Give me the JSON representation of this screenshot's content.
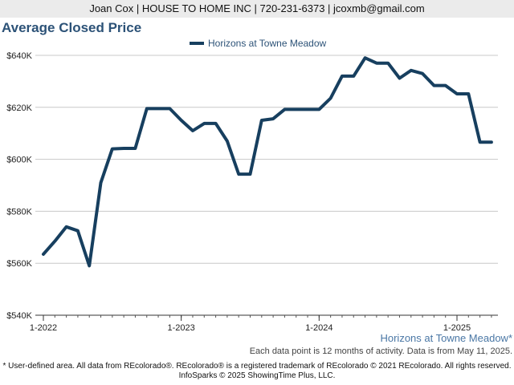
{
  "header": {
    "contact_line": "Joan Cox | HOUSE TO HOME INC | 720-231-6373 | jcoxmb@gmail.com"
  },
  "chart_data": {
    "type": "line",
    "title": "Average Closed Price",
    "legend": {
      "position": "top-center"
    },
    "grid": true,
    "ylim": [
      540000,
      640000
    ],
    "y_ticks": [
      540000,
      560000,
      580000,
      600000,
      620000,
      640000
    ],
    "y_tick_labels": [
      "$540K",
      "$560K",
      "$580K",
      "$600K",
      "$620K",
      "$640K"
    ],
    "x_ticks": [
      "2022-01",
      "2023-01",
      "2024-01",
      "2025-01"
    ],
    "x_tick_labels": [
      "1-2022",
      "1-2023",
      "1-2024",
      "1-2025"
    ],
    "series": [
      {
        "name": "Horizons at Towne Meadow",
        "color": "#173f5f",
        "x": [
          "2022-01",
          "2022-02",
          "2022-03",
          "2022-04",
          "2022-05",
          "2022-06",
          "2022-07",
          "2022-08",
          "2022-09",
          "2022-10",
          "2022-11",
          "2022-12",
          "2023-01",
          "2023-02",
          "2023-03",
          "2023-04",
          "2023-05",
          "2023-06",
          "2023-07",
          "2023-08",
          "2023-09",
          "2023-10",
          "2023-11",
          "2023-12",
          "2024-01",
          "2024-02",
          "2024-03",
          "2024-04",
          "2024-05",
          "2024-06",
          "2024-07",
          "2024-08",
          "2024-09",
          "2024-10",
          "2024-11",
          "2024-12",
          "2025-01",
          "2025-02",
          "2025-03",
          "2025-04"
        ],
        "values": [
          563500,
          568500,
          574000,
          572500,
          559000,
          591000,
          604000,
          604200,
          604200,
          619500,
          619500,
          619500,
          615000,
          611000,
          613800,
          613800,
          607000,
          594300,
          594300,
          615000,
          615600,
          619200,
          619200,
          619200,
          619200,
          623500,
          632000,
          632000,
          639000,
          637000,
          637000,
          631200,
          634200,
          633000,
          628400,
          628400,
          625200,
          625200,
          606600,
          606600
        ]
      }
    ]
  },
  "footer": {
    "region_label": "Horizons at Towne Meadow*",
    "data_note": "Each data point is 12 months of activity. Data is from May 11, 2025.",
    "disclaimer": "* User-defined area. All data from REcolorado®. REcolorado® is a registered trademark of REcolorado © 2021 REcolorado. All rights reserved.",
    "copyright": "InfoSparks © 2025 ShowingTime Plus, LLC."
  }
}
